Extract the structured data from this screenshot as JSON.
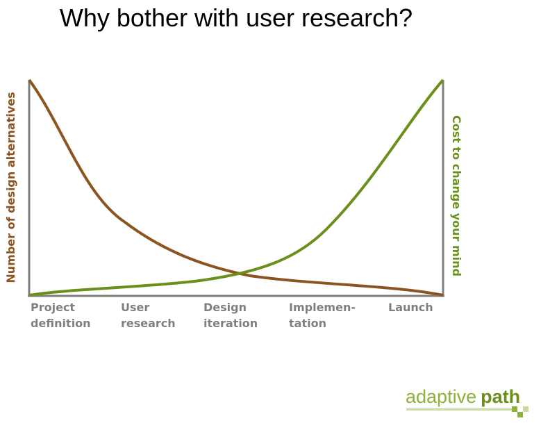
{
  "title": "Why bother with user research?",
  "left_label": "Number of design alternatives",
  "right_label": "Cost to change your mind",
  "stages": [
    [
      "Project",
      "definition"
    ],
    [
      "User",
      "research"
    ],
    [
      "Design",
      "iteration"
    ],
    [
      "Implemen-",
      "tation"
    ],
    [
      "Launch"
    ]
  ],
  "logo": {
    "first": "adaptive",
    "second": "path"
  }
}
